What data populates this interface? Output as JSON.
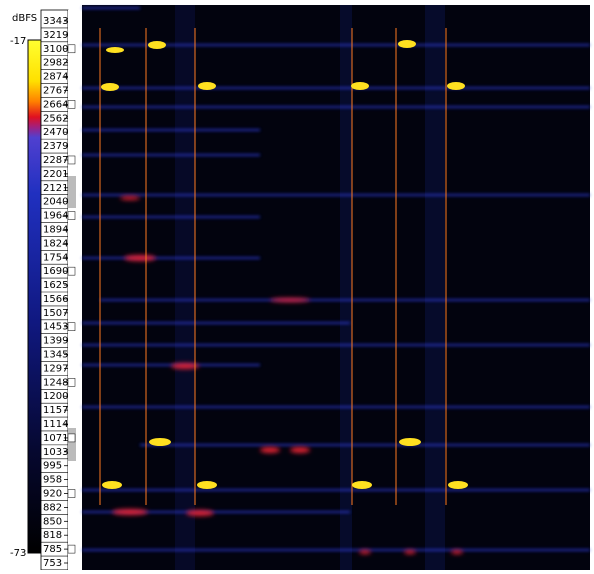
{
  "panel": {
    "unit": "dBFS",
    "scale_max": "-17",
    "scale_min": "-73"
  },
  "frequency_labels": [
    3343,
    3219,
    3100,
    2982,
    2874,
    2767,
    2664,
    2562,
    2470,
    2379,
    2287,
    2201,
    2121,
    2040,
    1964,
    1894,
    1824,
    1754,
    1690,
    1625,
    1566,
    1507,
    1453,
    1399,
    1345,
    1297,
    1248,
    1200,
    1157,
    1114,
    1071,
    1033,
    995,
    958,
    920,
    882,
    850,
    818,
    785,
    753
  ]
}
